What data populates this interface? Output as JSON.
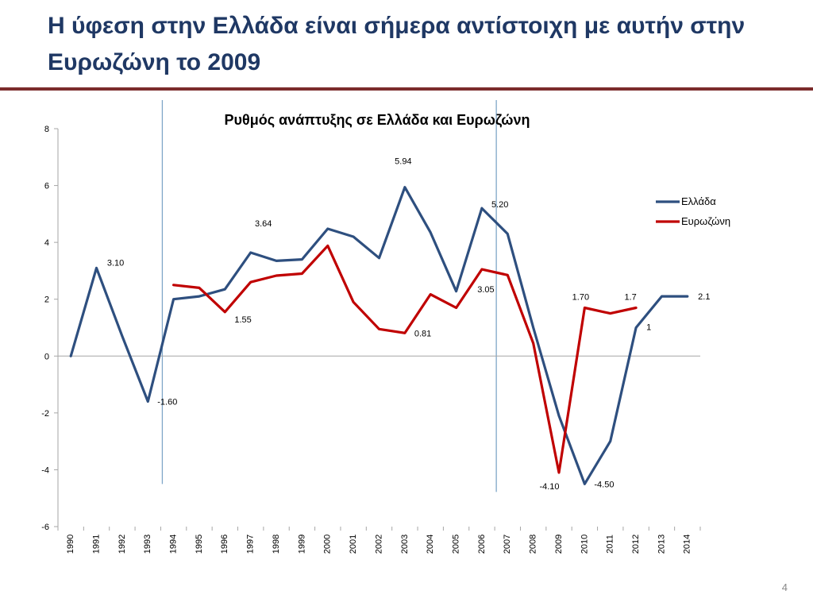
{
  "slide": {
    "title": "Η ύφεση στην Ελλάδα είναι σήμερα αντίστοιχη με αυτήν στην Ευρωζώνη το 2009",
    "page_number": "4"
  },
  "colors": {
    "title": "#1F3864",
    "title_rule": "#7B2C2C",
    "greece": "#2E4F7F",
    "eurozone": "#C00000",
    "marker_line": "#7FA6C8",
    "axis": "#A6A6A6"
  },
  "chart_data": {
    "type": "line",
    "title": "Ρυθμός ανάπτυξης σε Ελλάδα και Ευρωζώνη",
    "xlabel": "",
    "ylabel": "",
    "x": [
      "1990",
      "1991",
      "1992",
      "1993",
      "1994",
      "1995",
      "1996",
      "1997",
      "1998",
      "1999",
      "2000",
      "2001",
      "2002",
      "2003",
      "2004",
      "2005",
      "2006",
      "2007",
      "2008",
      "2009",
      "2010",
      "2011",
      "2012",
      "2013",
      "2014"
    ],
    "ylim": [
      -6,
      8
    ],
    "yticks": [
      8,
      6,
      4,
      2,
      0,
      -2,
      -4,
      -6
    ],
    "grid": false,
    "legend_position": "right",
    "vertical_markers": [
      "1994",
      "2007"
    ],
    "series": [
      {
        "name": "Ελλάδα",
        "color": "#2E4F7F",
        "values": [
          0,
          3.1,
          0.7,
          -1.6,
          2.0,
          2.1,
          2.35,
          3.64,
          3.35,
          3.4,
          4.48,
          4.2,
          3.45,
          5.94,
          4.35,
          2.28,
          5.2,
          4.3,
          1.0,
          -2.1,
          -4.5,
          -3.0,
          1.0,
          2.1,
          2.1
        ]
      },
      {
        "name": "Ευρωζώνη",
        "color": "#C00000",
        "values": [
          null,
          null,
          null,
          null,
          2.5,
          2.4,
          1.55,
          2.6,
          2.83,
          2.9,
          3.88,
          1.9,
          0.95,
          0.81,
          2.17,
          1.7,
          3.05,
          2.85,
          0.45,
          -4.1,
          1.7,
          1.5,
          1.7,
          null,
          null
        ]
      }
    ],
    "annotations": [
      {
        "label": "3.10",
        "series": "Ελλάδα",
        "x": "1991",
        "y": 3.1
      },
      {
        "label": "-1.60",
        "series": "Ελλάδα",
        "x": "1993",
        "y": -1.6
      },
      {
        "label": "3.64",
        "series": "Ελλάδα",
        "x": "1997",
        "y": 3.64
      },
      {
        "label": "5.94",
        "series": "Ελλάδα",
        "x": "2003",
        "y": 5.94
      },
      {
        "label": "5.20",
        "series": "Ελλάδα",
        "x": "2006",
        "y": 5.2
      },
      {
        "label": "-4.50",
        "series": "Ελλάδα",
        "x": "2010",
        "y": -4.5
      },
      {
        "label": "1",
        "series": "Ελλάδα",
        "x": "2012",
        "y": 1.0
      },
      {
        "label": "2.1",
        "series": "Ελλάδα",
        "x": "2014",
        "y": 2.1
      },
      {
        "label": "1.55",
        "series": "Ευρωζώνη",
        "x": "1996",
        "y": 1.55
      },
      {
        "label": "0.81",
        "series": "Ευρωζώνη",
        "x": "2003",
        "y": 0.81
      },
      {
        "label": "3.05",
        "series": "Ευρωζώνη",
        "x": "2006",
        "y": 3.05
      },
      {
        "label": "-4.10",
        "series": "Ευρωζώνη",
        "x": "2009",
        "y": -4.1
      },
      {
        "label": "1.70",
        "series": "Ευρωζώνη",
        "x": "2010",
        "y": 1.7
      },
      {
        "label": "1.7",
        "series": "Ευρωζώνη",
        "x": "2012",
        "y": 1.7
      }
    ]
  }
}
